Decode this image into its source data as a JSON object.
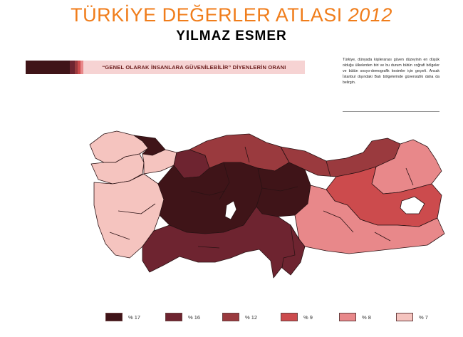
{
  "header": {
    "title_main": "TÜRKİYE DEĞERLER ATLASI",
    "title_year": "2012",
    "author": "YILMAZ ESMER"
  },
  "banner": {
    "text": "“GENEL OLARAK İNSANLARA GÜVENİLEBİLİR” DİYENLERİN ORANI"
  },
  "note": {
    "text": "Türkiye, dünyada kişilerarası güven düzeyinin en düşük olduğu ülkelerden biri ve bu durum bütün coğrafi bölgeler ve bütün sosyo-demografik kesimler için geçerli. Ancak İstanbul dışındaki Batı bölgelerinde güvensizlik daha da belirgin."
  },
  "colors": {
    "accent_orange": "#f07d1b",
    "c17": "#3f1418",
    "c16": "#6e2430",
    "c12": "#9a3a3e",
    "c9": "#cc4b4d",
    "c8": "#e8888a",
    "c7": "#f5c4bf",
    "border": "#2a1214",
    "lake": "#ffffff"
  },
  "legend": [
    {
      "label": "% 17",
      "color": "#3f1418"
    },
    {
      "label": "% 16",
      "color": "#6e2430"
    },
    {
      "label": "% 12",
      "color": "#9a3a3e"
    },
    {
      "label": "% 9",
      "color": "#cc4b4d"
    },
    {
      "label": "% 8",
      "color": "#e8888a"
    },
    {
      "label": "% 7",
      "color": "#f5c4bf"
    }
  ],
  "map_regions": [
    {
      "region": "Istanbul",
      "value_percent": 12
    },
    {
      "region": "West Marmara",
      "value_percent": 7
    },
    {
      "region": "Aegean",
      "value_percent": 7
    },
    {
      "region": "East Marmara",
      "value_percent": 16
    },
    {
      "region": "West Anatolia",
      "value_percent": 17
    },
    {
      "region": "Central Anatolia",
      "value_percent": 17
    },
    {
      "region": "Mediterranean",
      "value_percent": 16
    },
    {
      "region": "West Black Sea",
      "value_percent": 12
    },
    {
      "region": "East Black Sea",
      "value_percent": 9
    },
    {
      "region": "Northeast Anatolia",
      "value_percent": 8
    },
    {
      "region": "Central East Anatolia",
      "value_percent": 9
    },
    {
      "region": "Southeast Anatolia",
      "value_percent": 9
    }
  ]
}
